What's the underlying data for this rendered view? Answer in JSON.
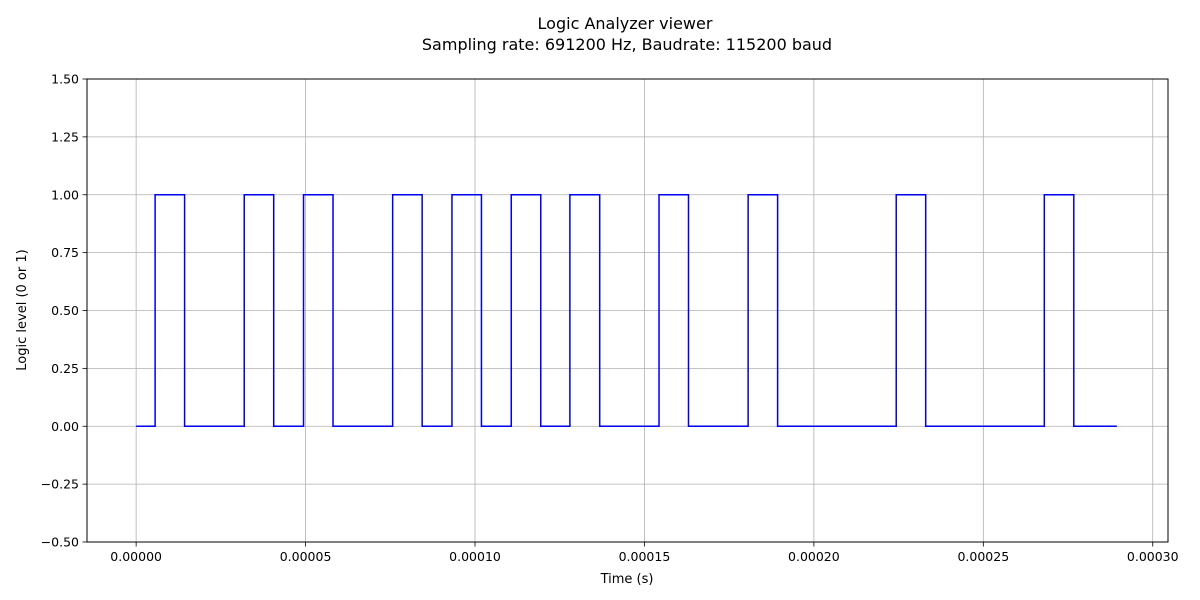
{
  "chart_data": {
    "type": "line",
    "title": "Logic Analyzer viewer",
    "subtitle": "Sampling rate:  691200 Hz, Baudrate: 115200 baud",
    "xlabel": "Time (s)",
    "ylabel": "Logic level (0 or 1)",
    "xlim": [
      -1.45e-05,
      0.0003045
    ],
    "ylim": [
      -0.5,
      1.5
    ],
    "xticks": [
      0,
      5e-05,
      0.0001,
      0.00015,
      0.0002,
      0.00025,
      0.0003
    ],
    "xtick_labels": [
      "0.00000",
      "0.00005",
      "0.00010",
      "0.00015",
      "0.00020",
      "0.00025",
      "0.00030"
    ],
    "yticks": [
      -0.5,
      -0.25,
      0,
      0.25,
      0.5,
      0.75,
      1.0,
      1.25,
      1.5
    ],
    "ytick_labels": [
      "−0.50",
      "−0.25",
      "0.00",
      "0.25",
      "0.50",
      "0.75",
      "1.00",
      "1.25",
      "1.50"
    ],
    "grid": true,
    "line_color": "#0000ee",
    "series": [
      {
        "step": "post",
        "x": [
          0,
          5.6e-06,
          1.43e-05,
          3.19e-05,
          4.06e-05,
          4.94e-05,
          5.81e-05,
          7.57e-05,
          8.44e-05,
          9.32e-05,
          0.0001019,
          0.0001107,
          0.0001194,
          0.000128,
          0.0001368,
          0.0001543,
          0.000163,
          0.0001806,
          0.0001893,
          0.0002243,
          0.000233,
          0.000268,
          0.0002767,
          0.0002894
        ],
        "y": [
          0,
          1,
          0,
          1,
          0,
          1,
          0,
          1,
          0,
          1,
          0,
          1,
          0,
          1,
          0,
          1,
          0,
          1,
          0,
          1,
          0,
          1,
          0,
          0
        ]
      }
    ]
  }
}
